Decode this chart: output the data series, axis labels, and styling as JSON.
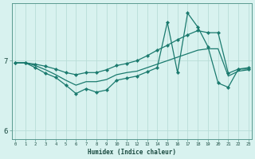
{
  "xlabel": "Humidex (Indice chaleur)",
  "background_color": "#d8f2ef",
  "line_color": "#1a7a6e",
  "grid_color": "#b8ddd8",
  "x_values": [
    0,
    1,
    2,
    3,
    4,
    5,
    6,
    7,
    8,
    9,
    10,
    11,
    12,
    13,
    14,
    15,
    16,
    17,
    18,
    19,
    20,
    21,
    22,
    23
  ],
  "line_jagged_y": [
    6.97,
    6.97,
    6.9,
    6.82,
    6.76,
    6.65,
    6.53,
    6.6,
    6.55,
    6.58,
    6.72,
    6.75,
    6.78,
    6.84,
    6.9,
    7.55,
    6.83,
    7.68,
    7.48,
    7.2,
    6.68,
    6.62,
    6.88,
    6.88
  ],
  "line_upper_y": [
    6.97,
    6.97,
    6.95,
    6.92,
    6.88,
    6.83,
    6.8,
    6.83,
    6.83,
    6.87,
    6.93,
    6.96,
    7.0,
    7.07,
    7.15,
    7.22,
    7.3,
    7.37,
    7.43,
    7.4,
    7.4,
    6.82,
    6.88,
    6.9
  ],
  "line_lower_y": [
    6.97,
    6.97,
    6.93,
    6.87,
    6.8,
    6.72,
    6.65,
    6.7,
    6.7,
    6.73,
    6.8,
    6.83,
    6.85,
    6.9,
    6.95,
    7.0,
    7.05,
    7.1,
    7.15,
    7.17,
    7.17,
    6.78,
    6.85,
    6.87
  ],
  "yticks": [
    6,
    7
  ],
  "xticks": [
    0,
    1,
    2,
    3,
    4,
    5,
    6,
    7,
    8,
    9,
    10,
    11,
    12,
    13,
    14,
    15,
    16,
    17,
    18,
    19,
    20,
    21,
    22,
    23
  ],
  "ylim": [
    5.88,
    7.82
  ],
  "xlim": [
    -0.3,
    23.3
  ]
}
